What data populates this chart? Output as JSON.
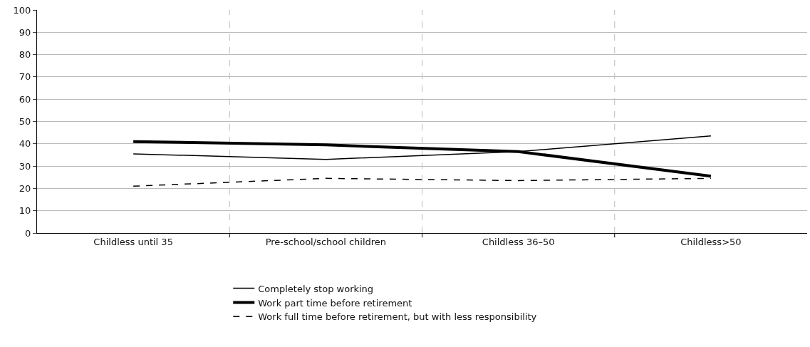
{
  "chart_data": {
    "type": "line",
    "categories": [
      "Childless until 35",
      "Pre-school/school children",
      "Childless 36–50",
      "Childless>50"
    ],
    "series": [
      {
        "name": "Completely stop working",
        "color": "#000000",
        "values": [
          35.5,
          33,
          36.5,
          43.5
        ],
        "line_style": "solid"
      },
      {
        "name": "Work part time before retirement",
        "color": "#000000",
        "values": [
          41,
          39.5,
          36.5,
          25.5
        ],
        "line_style": "solid"
      },
      {
        "name": "Work full time before retirement, but with less responsibility",
        "color": "#000000",
        "values": [
          21,
          24.5,
          23.5,
          24.5
        ],
        "line_style": "dashed"
      }
    ],
    "ylim": [
      0,
      100
    ],
    "yticks": [
      0,
      10,
      20,
      30,
      40,
      50,
      60,
      70,
      80,
      90,
      100
    ],
    "grid": true,
    "legend": "bottom",
    "marker": "none"
  }
}
